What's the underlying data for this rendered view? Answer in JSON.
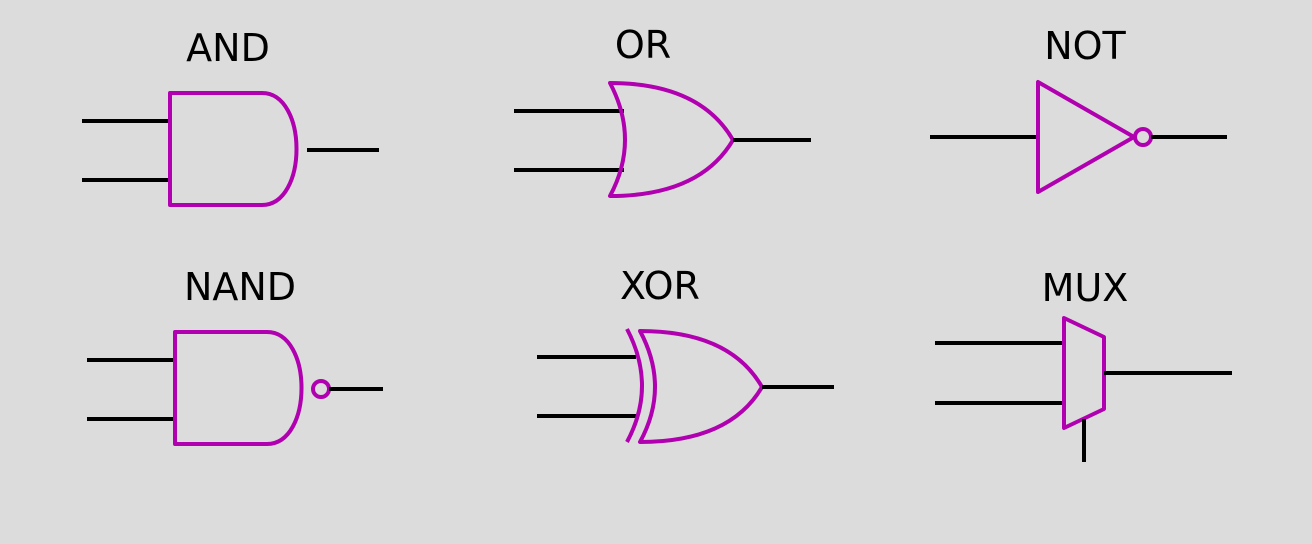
{
  "colors": {
    "background": "#dcdcdc",
    "gate_outline": "#b000b0",
    "wire": "#000000",
    "text": "#000000"
  },
  "gates": {
    "and": {
      "label": "AND"
    },
    "or": {
      "label": "OR"
    },
    "not": {
      "label": "NOT"
    },
    "nand": {
      "label": "NAND"
    },
    "xor": {
      "label": "XOR"
    },
    "mux": {
      "label": "MUX"
    }
  }
}
